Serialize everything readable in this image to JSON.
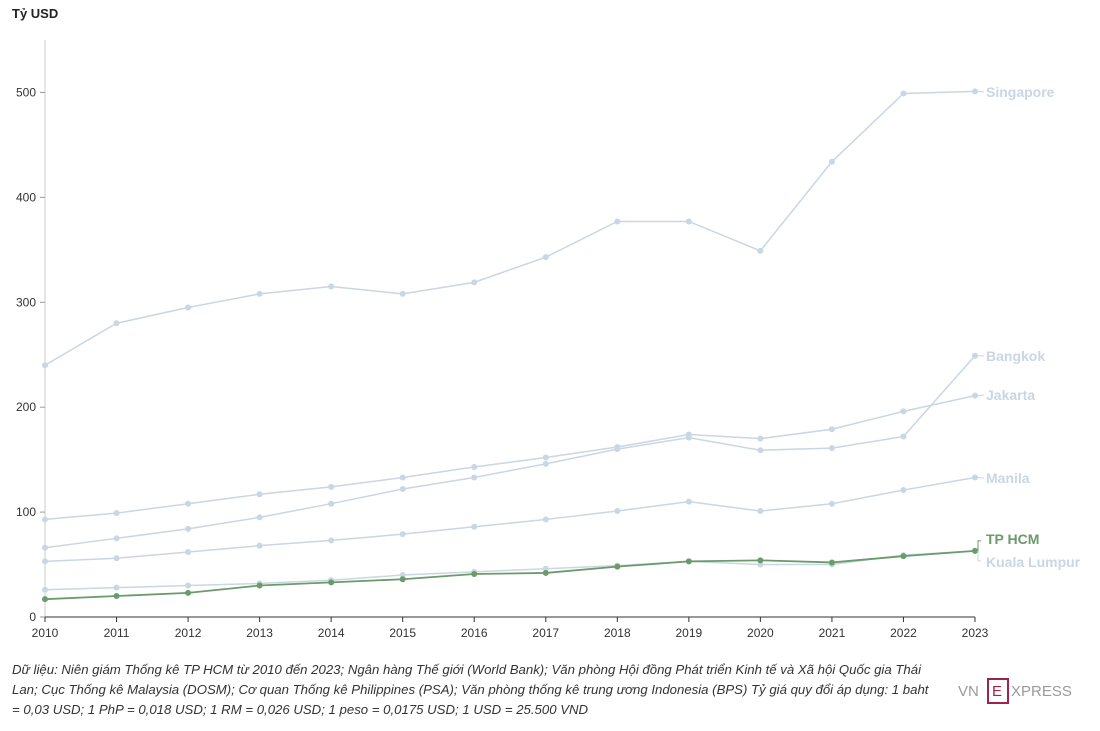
{
  "chart_data": {
    "type": "line",
    "unit_label": "Tỷ USD",
    "x": [
      2010,
      2011,
      2012,
      2013,
      2014,
      2015,
      2016,
      2017,
      2018,
      2019,
      2020,
      2021,
      2022,
      2023
    ],
    "xlim": [
      2010,
      2023
    ],
    "ylim": [
      0,
      550
    ],
    "y_ticks": [
      0,
      100,
      200,
      300,
      400,
      500
    ],
    "grid": false,
    "legend": "labels at line ends, right",
    "series": [
      {
        "name": "Singapore",
        "color": "#c9d6e3",
        "highlight": false,
        "values": [
          240,
          280,
          295,
          308,
          315,
          308,
          319,
          343,
          377,
          377,
          349,
          434,
          499,
          501
        ]
      },
      {
        "name": "Bangkok",
        "color": "#c9d6e3",
        "highlight": false,
        "values": [
          66,
          75,
          84,
          95,
          108,
          122,
          133,
          146,
          160,
          171,
          159,
          161,
          172,
          249
        ]
      },
      {
        "name": "Jakarta",
        "color": "#c9d6e3",
        "highlight": false,
        "values": [
          93,
          99,
          108,
          117,
          124,
          133,
          143,
          152,
          162,
          174,
          170,
          179,
          196,
          211
        ]
      },
      {
        "name": "Manila",
        "color": "#c9d6e3",
        "highlight": false,
        "values": [
          53,
          56,
          62,
          68,
          73,
          79,
          86,
          93,
          101,
          110,
          101,
          108,
          121,
          133
        ]
      },
      {
        "name": "Kuala Lumpur",
        "color": "#c9d6e3",
        "highlight": false,
        "values": [
          26,
          28,
          30,
          32,
          35,
          40,
          43,
          46,
          49,
          53,
          50,
          50,
          59,
          63
        ]
      },
      {
        "name": "TP HCM",
        "color": "#6b9a6b",
        "highlight": true,
        "values": [
          17,
          20,
          23,
          30,
          33,
          36,
          41,
          42,
          48,
          53,
          54,
          52,
          58,
          63
        ]
      }
    ]
  },
  "footnote": "Dữ liệu: Niên giám Thống kê TP HCM từ 2010 đến 2023; Ngân hàng Thế giới (World Bank); Văn phòng Hội đồng Phát triển Kinh tế và Xã hội Quốc gia Thái Lan; Cục Thống kê Malaysia (DOSM); Cơ quan Thống kê Philippines (PSA); Văn phòng thống kê trung ương Indonesia (BPS) Tỷ giá quy đổi áp dụng: 1 baht = 0,03 USD; 1 PhP = 0,018 USD; 1 RM = 0,026 USD; 1 peso = 0,0175 USD; 1 USD = 25.500 VND",
  "brand": {
    "left": "VN",
    "box": "E",
    "right": "XPRESS",
    "color": "#9a9a9a",
    "accent": "#9f224e"
  }
}
